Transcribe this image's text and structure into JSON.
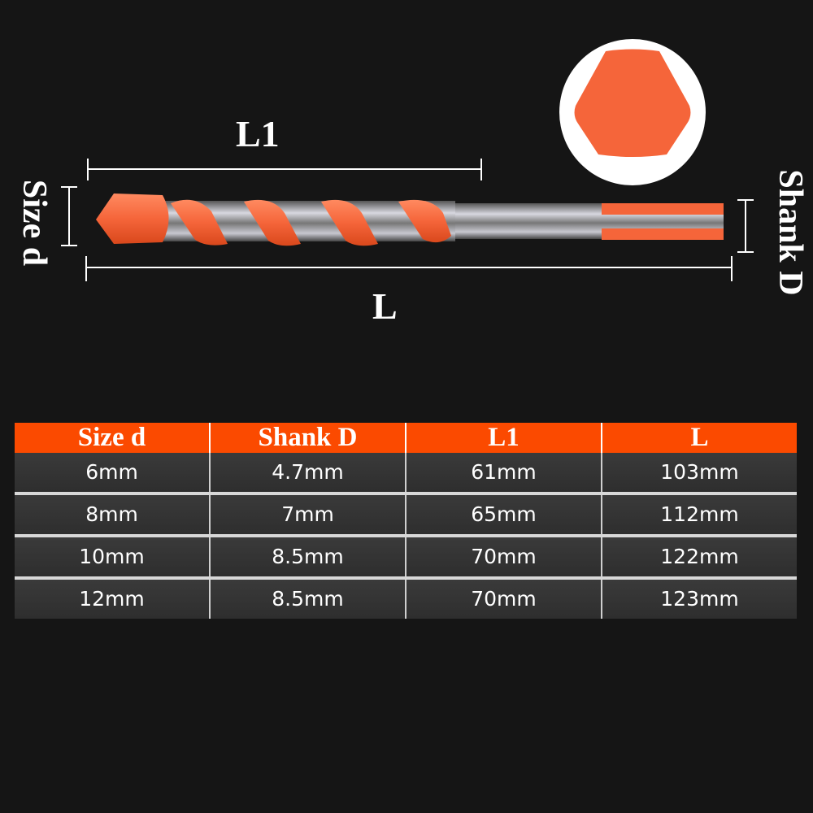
{
  "diagram": {
    "labels": {
      "l1": "L1",
      "l": "L",
      "size_d": "Size d",
      "shank_d": "Shank D"
    },
    "colors": {
      "accent": "#fb4a00",
      "drill_orange": "#f5653a",
      "background": "#151515"
    }
  },
  "table": {
    "headers": [
      "Size d",
      "Shank D",
      "L1",
      "L"
    ],
    "rows": [
      [
        "6mm",
        "4.7mm",
        "61mm",
        "103mm"
      ],
      [
        "8mm",
        "7mm",
        "65mm",
        "112mm"
      ],
      [
        "10mm",
        "8.5mm",
        "70mm",
        "122mm"
      ],
      [
        "12mm",
        "8.5mm",
        "70mm",
        "123mm"
      ]
    ]
  }
}
